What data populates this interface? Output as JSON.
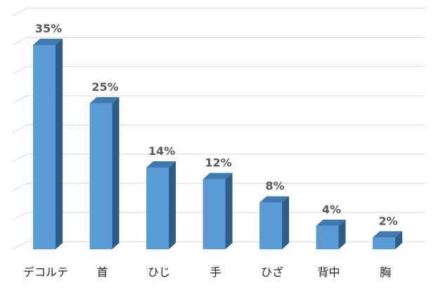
{
  "chart_data": {
    "type": "bar",
    "categories": [
      "デコルテ",
      "首",
      "ひじ",
      "手",
      "ひざ",
      "背中",
      "胸"
    ],
    "values": [
      35,
      25,
      14,
      12,
      8,
      4,
      2
    ],
    "value_labels": [
      "35%",
      "25%",
      "14%",
      "12%",
      "8%",
      "4%",
      "2%"
    ],
    "ylim": [
      0,
      40
    ],
    "grid": true,
    "style": "3d-column",
    "colors": {
      "front": "#5b9bd5",
      "side": "#2e5d87",
      "top": "#3f78ad",
      "grid": "#d9d9d9"
    }
  }
}
